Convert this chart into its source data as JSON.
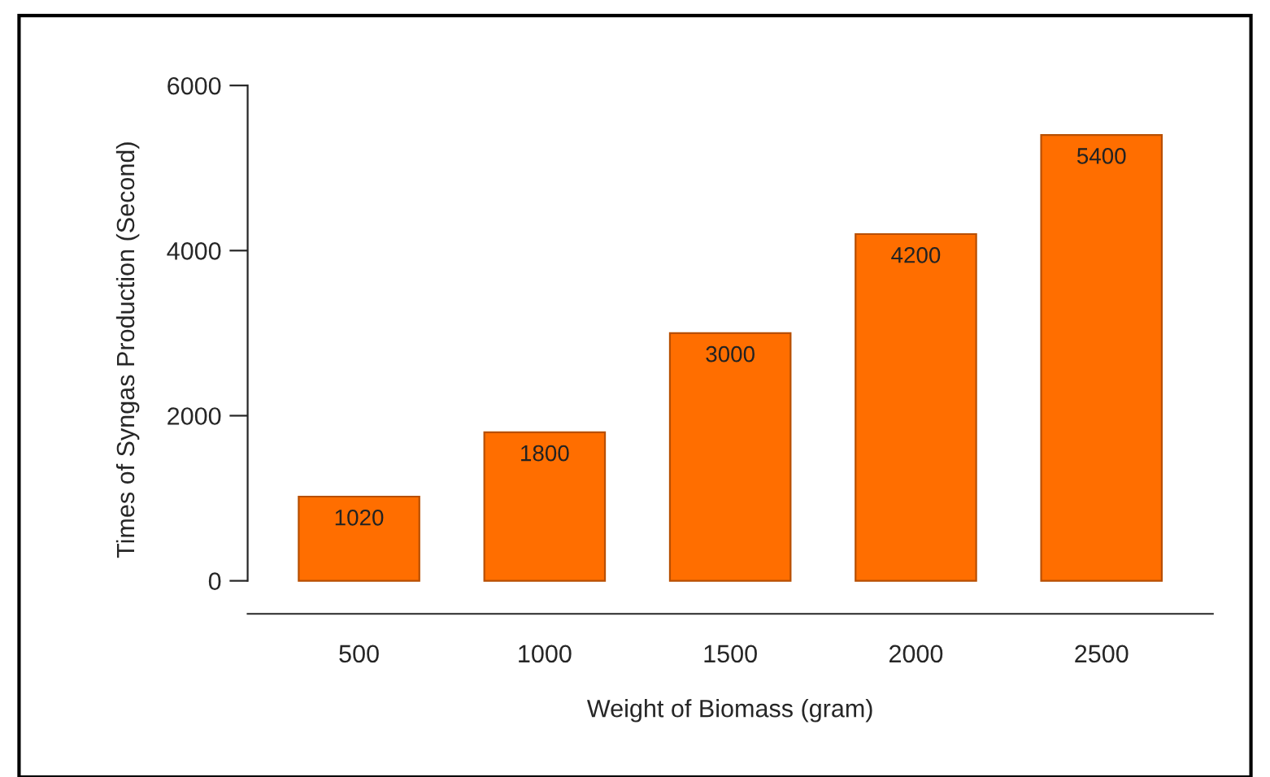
{
  "chart_data": {
    "type": "bar",
    "xlabel": "Weight of Biomass (gram)",
    "ylabel": "Times of Syngas Production (Second)",
    "categories": [
      "500",
      "1000",
      "1500",
      "2000",
      "2500"
    ],
    "values": [
      1020,
      1800,
      3000,
      4200,
      5400
    ],
    "color": "#ff6e00",
    "ylim": [
      -400,
      6000
    ],
    "yticks": [
      0,
      2000,
      4000,
      6000
    ],
    "data_labels": true,
    "grid": false,
    "legend": false
  }
}
